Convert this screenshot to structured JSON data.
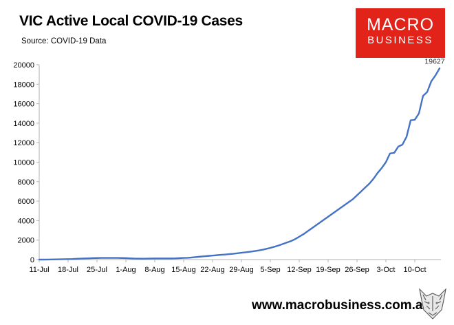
{
  "header": {
    "title": "VIC Active Local COVID-19 Cases",
    "subtitle": "Source: COVID-19 Data"
  },
  "logo": {
    "line1": "MACRO",
    "line2": "BUSINESS",
    "color": "#e2231a"
  },
  "footer": {
    "website": "www.macrobusiness.com.au",
    "emblem_icon": "wolf-emblem-icon"
  },
  "chart_data": {
    "type": "line",
    "title": "VIC Active Local COVID-19 Cases",
    "subtitle": "Source: COVID-19 Data",
    "ylim": [
      0,
      20000
    ],
    "yticks": [
      0,
      2000,
      4000,
      6000,
      8000,
      10000,
      12000,
      14000,
      16000,
      18000,
      20000
    ],
    "xlabels": [
      "11-Jul",
      "18-Jul",
      "25-Jul",
      "1-Aug",
      "8-Aug",
      "15-Aug",
      "22-Aug",
      "29-Aug",
      "5-Sep",
      "12-Sep",
      "19-Sep",
      "26-Sep",
      "3-Oct",
      "10-Oct"
    ],
    "start_label": "11-Jul",
    "grid": false,
    "line_color": "#4472c4",
    "end_label": "19627",
    "series": [
      {
        "values": [
          0,
          0,
          5,
          10,
          20,
          30,
          40,
          50,
          60,
          80,
          100,
          120,
          130,
          150,
          160,
          170,
          170,
          170,
          170,
          170,
          160,
          150,
          130,
          110,
          100,
          90,
          100,
          110,
          120,
          120,
          120,
          120,
          120,
          130,
          150,
          170,
          180,
          220,
          260,
          300,
          340,
          380,
          410,
          450,
          490,
          520,
          560,
          600,
          650,
          700,
          750,
          800,
          860,
          920,
          1000,
          1100,
          1200,
          1320,
          1450,
          1600,
          1750,
          1900,
          2100,
          2350,
          2600,
          2900,
          3200,
          3500,
          3800,
          4100,
          4400,
          4700,
          5000,
          5300,
          5600,
          5900,
          6200,
          6600,
          7000,
          7400,
          7800,
          8300,
          8900,
          9400,
          10000,
          10900,
          10950,
          11600,
          11800,
          12600,
          14300,
          14350,
          15000,
          16800,
          17200,
          18300,
          18900,
          19627
        ]
      }
    ]
  }
}
